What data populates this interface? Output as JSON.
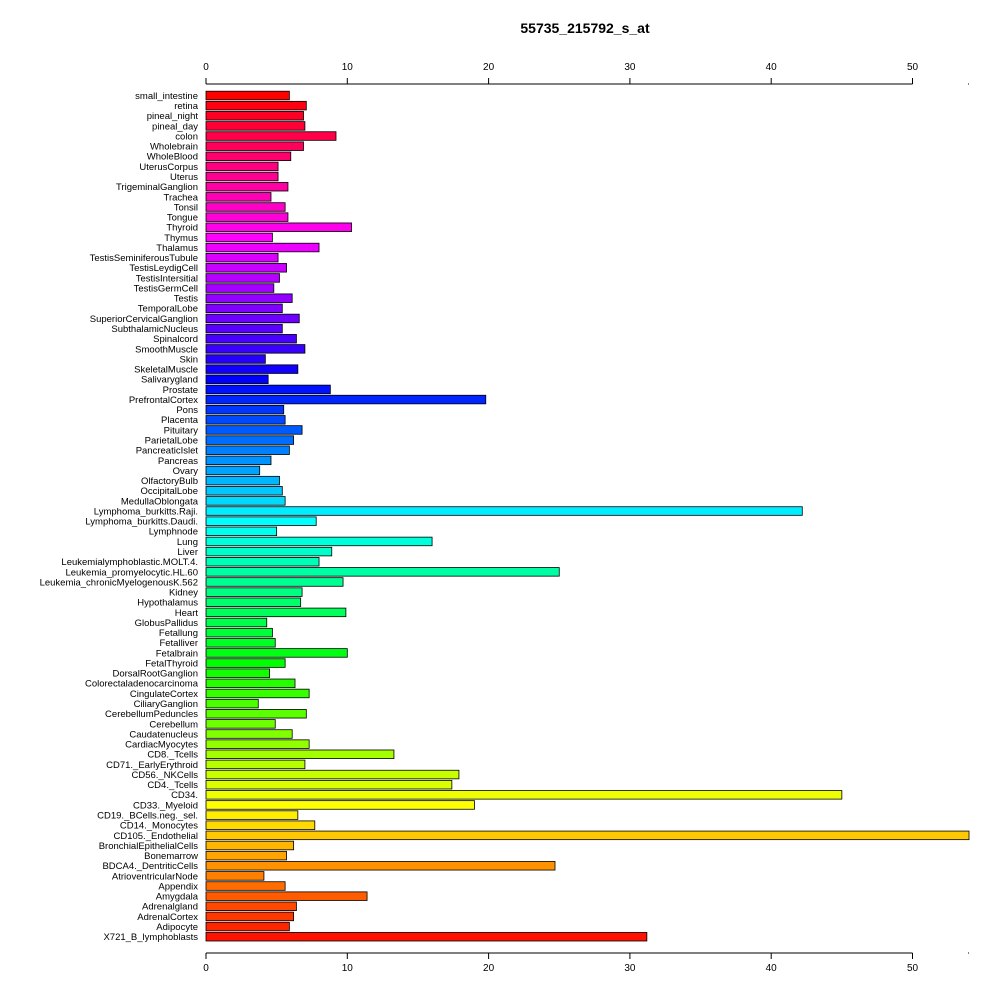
{
  "chart_data": {
    "type": "bar",
    "orientation": "horizontal",
    "title": "55735_215792_s_at",
    "xlabel": "",
    "ylabel": "",
    "xlim": [
      0,
      54
    ],
    "ticks": [
      0,
      10,
      20,
      30,
      40,
      50
    ],
    "grid": false,
    "legend": "none",
    "categories": [
      "small_intestine",
      "retina",
      "pineal_night",
      "pineal_day",
      "colon",
      "Wholebrain",
      "WholeBlood",
      "UterusCorpus",
      "Uterus",
      "TrigeminalGanglion",
      "Trachea",
      "Tonsil",
      "Tongue",
      "Thyroid",
      "Thymus",
      "Thalamus",
      "TestisSeminiferousTubule",
      "TestisLeydigCell",
      "TestisIntersitial",
      "TestisGermCell",
      "Testis",
      "TemporalLobe",
      "SuperiorCervicalGanglion",
      "SubthalamicNucleus",
      "Spinalcord",
      "SmoothMuscle",
      "Skin",
      "SkeletalMuscle",
      "Salivarygland",
      "Prostate",
      "PrefrontalCortex",
      "Pons",
      "Placenta",
      "Pituitary",
      "ParietalLobe",
      "PancreaticIslet",
      "Pancreas",
      "Ovary",
      "OlfactoryBulb",
      "OccipitalLobe",
      "MedullaOblongata",
      "Lymphoma_burkitts.Raji.",
      "Lymphoma_burkitts.Daudi.",
      "Lymphnode",
      "Lung",
      "Liver",
      "Leukemialymphoblastic.MOLT.4.",
      "Leukemia_promyelocytic.HL.60",
      "Leukemia_chronicMyelogenousK.562",
      "Kidney",
      "Hypothalamus",
      "Heart",
      "GlobusPallidus",
      "Fetallung",
      "Fetalliver",
      "Fetalbrain",
      "FetalThyroid",
      "DorsalRootGanglion",
      "Colorectaladenocarcinoma",
      "CingulateCortex",
      "CiliaryGanglion",
      "CerebellumPeduncles",
      "Cerebellum",
      "Caudatenucleus",
      "CardiacMyocytes",
      "CD8._Tcells",
      "CD71._EarlyErythroid",
      "CD56._NKCells",
      "CD4._Tcells",
      "CD34.",
      "CD33._Myeloid",
      "CD19._BCells.neg._sel.",
      "CD14._Monocytes",
      "CD105._Endothelial",
      "BronchialEpithelialCells",
      "Bonemarrow",
      "BDCA4._DentriticCells",
      "AtrioventricularNode",
      "Appendix",
      "Amygdala",
      "Adrenalgland",
      "AdrenalCortex",
      "Adipocyte",
      "X721_B_lymphoblasts"
    ],
    "values": [
      5.9,
      7.1,
      6.9,
      7.0,
      9.2,
      6.9,
      6.0,
      5.1,
      5.1,
      5.8,
      4.6,
      5.6,
      5.8,
      10.3,
      4.7,
      8.0,
      5.1,
      5.7,
      5.2,
      4.8,
      6.1,
      5.4,
      6.6,
      5.4,
      6.4,
      7.0,
      4.2,
      6.5,
      4.4,
      8.8,
      19.8,
      5.5,
      5.6,
      6.8,
      6.2,
      5.9,
      4.6,
      3.8,
      5.2,
      5.4,
      5.6,
      42.2,
      7.8,
      5.0,
      16.0,
      8.9,
      8.0,
      25.0,
      9.7,
      6.8,
      6.7,
      9.9,
      4.3,
      4.7,
      4.9,
      10.0,
      5.6,
      4.5,
      6.3,
      7.3,
      3.7,
      7.1,
      4.9,
      6.1,
      7.3,
      13.3,
      7.0,
      17.9,
      17.4,
      45.0,
      19.0,
      6.5,
      7.7,
      54.2,
      6.2,
      5.7,
      24.7,
      4.1,
      5.6,
      11.4,
      6.4,
      6.2,
      5.9,
      31.2
    ]
  }
}
